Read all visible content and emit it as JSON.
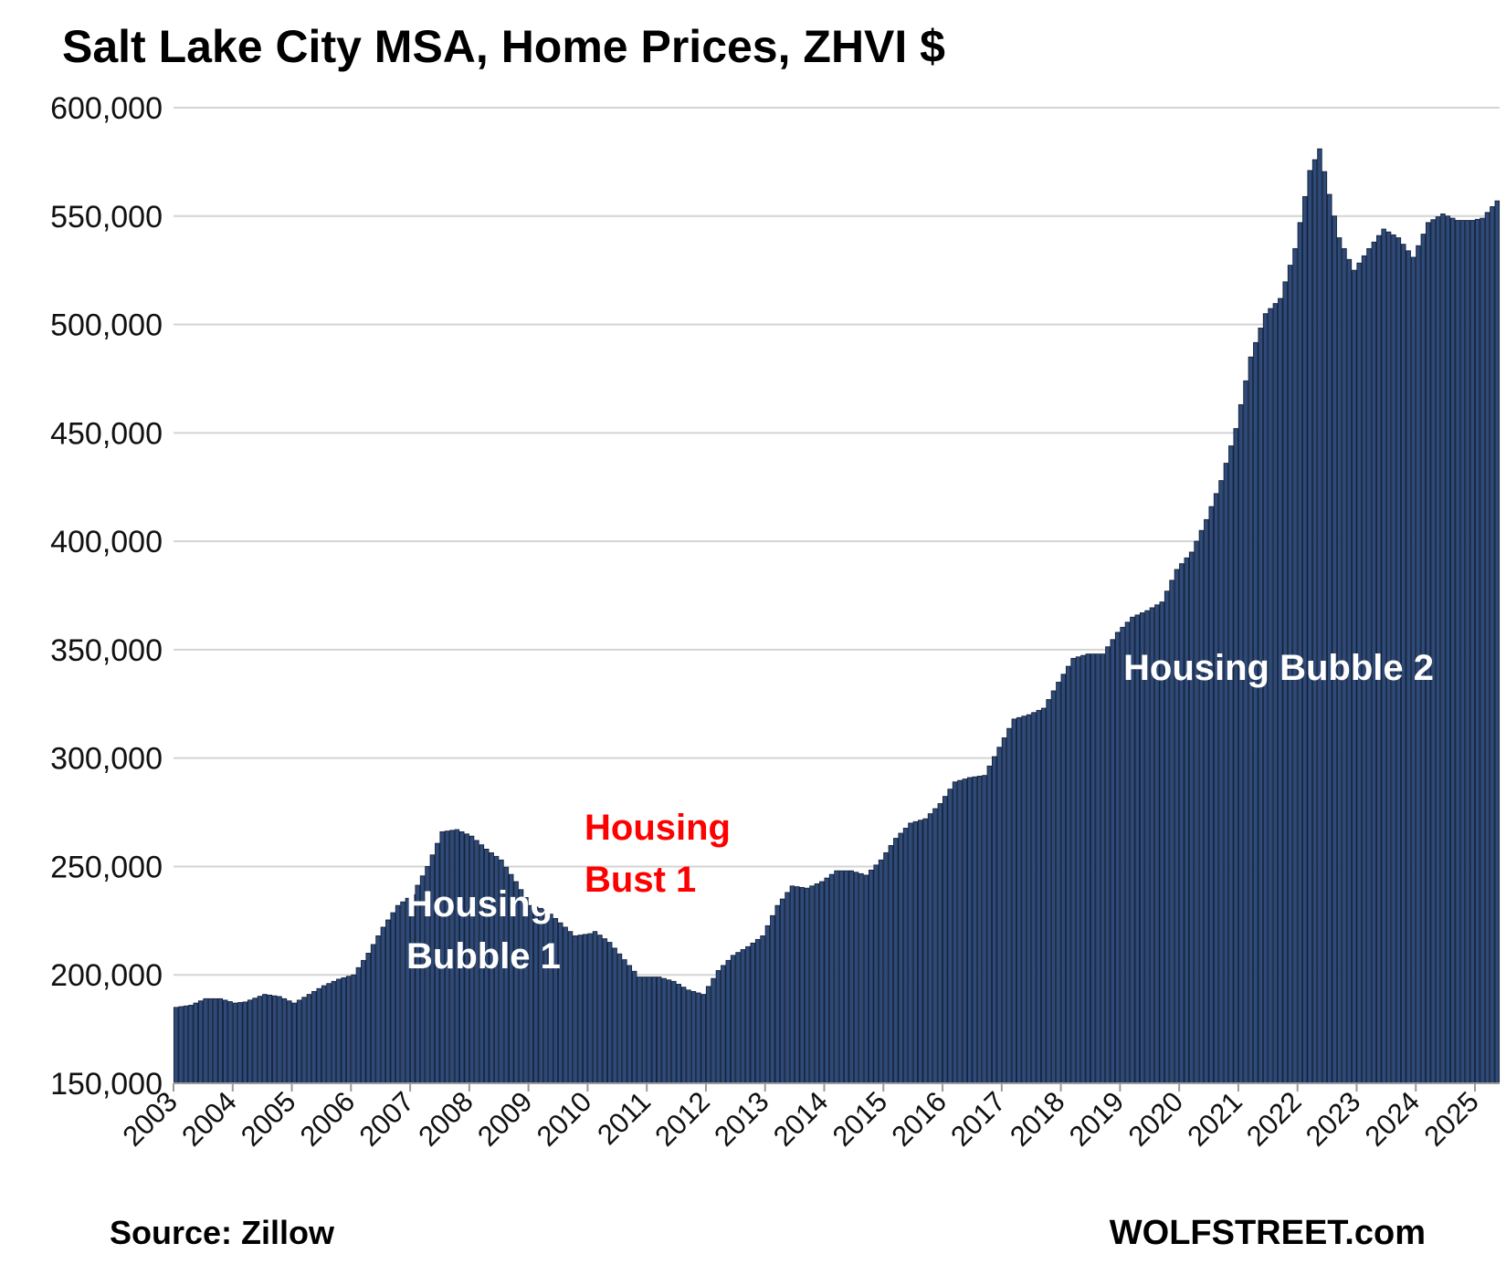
{
  "chart_data": {
    "type": "bar",
    "title": "Salt Lake City MSA, Home Prices, ZHVI $",
    "source": "Source: Zillow",
    "brand": "WOLFSTREET.com",
    "xlabel": "",
    "ylabel": "",
    "ylim": [
      150000,
      600000
    ],
    "yticks": [
      "150,000",
      "200,000",
      "250,000",
      "300,000",
      "350,000",
      "400,000",
      "450,000",
      "500,000",
      "550,000",
      "600,000"
    ],
    "xticks": [
      "2003",
      "2004",
      "2005",
      "2006",
      "2007",
      "2008",
      "2009",
      "2010",
      "2011",
      "2012",
      "2013",
      "2014",
      "2015",
      "2016",
      "2017",
      "2018",
      "2019",
      "2020",
      "2021",
      "2022",
      "2023",
      "2024",
      "2025"
    ],
    "grid": true,
    "bar_color": "#2e4a78",
    "annotations": [
      {
        "lines": [
          "Housing",
          "Bubble 1"
        ],
        "color": "#ffffff"
      },
      {
        "lines": [
          "Housing",
          "Bust 1"
        ],
        "color": "#ff0000"
      },
      {
        "lines": [
          "Housing Bubble 2"
        ],
        "color": "#ffffff"
      }
    ],
    "anchors": [
      [
        "2003-01",
        185000
      ],
      [
        "2003-04",
        186000
      ],
      [
        "2003-07",
        189000
      ],
      [
        "2003-10",
        189000
      ],
      [
        "2004-01",
        187000
      ],
      [
        "2004-03",
        187500
      ],
      [
        "2004-07",
        191000
      ],
      [
        "2004-10",
        190000
      ],
      [
        "2005-01",
        187000
      ],
      [
        "2005-04",
        191000
      ],
      [
        "2005-07",
        195000
      ],
      [
        "2005-10",
        198000
      ],
      [
        "2006-01",
        200000
      ],
      [
        "2006-04",
        210000
      ],
      [
        "2006-07",
        222000
      ],
      [
        "2006-10",
        232000
      ],
      [
        "2007-01",
        237000
      ],
      [
        "2007-04",
        250000
      ],
      [
        "2007-07",
        266000
      ],
      [
        "2007-10",
        267000
      ],
      [
        "2008-01",
        264000
      ],
      [
        "2008-04",
        258000
      ],
      [
        "2008-07",
        253000
      ],
      [
        "2008-10",
        243000
      ],
      [
        "2009-01",
        232000
      ],
      [
        "2009-04",
        230000
      ],
      [
        "2009-07",
        224000
      ],
      [
        "2009-10",
        218000
      ],
      [
        "2010-01",
        219000
      ],
      [
        "2010-02",
        220000
      ],
      [
        "2010-05",
        215000
      ],
      [
        "2010-08",
        207000
      ],
      [
        "2010-11",
        199000
      ],
      [
        "2011-03",
        199000
      ],
      [
        "2011-06",
        197000
      ],
      [
        "2011-09",
        193000
      ],
      [
        "2011-12",
        191000
      ],
      [
        "2012-03",
        202000
      ],
      [
        "2012-06",
        209000
      ],
      [
        "2012-09",
        213000
      ],
      [
        "2012-12",
        218000
      ],
      [
        "2013-03",
        232000
      ],
      [
        "2013-06",
        241000
      ],
      [
        "2013-09",
        240000
      ],
      [
        "2013-12",
        243000
      ],
      [
        "2014-03",
        248000
      ],
      [
        "2014-06",
        248000
      ],
      [
        "2014-09",
        246000
      ],
      [
        "2014-12",
        253000
      ],
      [
        "2015-03",
        263000
      ],
      [
        "2015-06",
        270000
      ],
      [
        "2015-09",
        272000
      ],
      [
        "2015-12",
        279000
      ],
      [
        "2016-03",
        289000
      ],
      [
        "2016-06",
        291000
      ],
      [
        "2016-09",
        292000
      ],
      [
        "2016-12",
        305000
      ],
      [
        "2017-03",
        318000
      ],
      [
        "2017-06",
        320000
      ],
      [
        "2017-09",
        323000
      ],
      [
        "2017-12",
        335000
      ],
      [
        "2018-03",
        346000
      ],
      [
        "2018-06",
        348000
      ],
      [
        "2018-09",
        348000
      ],
      [
        "2018-12",
        358000
      ],
      [
        "2019-03",
        365000
      ],
      [
        "2019-06",
        368000
      ],
      [
        "2019-09",
        372000
      ],
      [
        "2019-12",
        387000
      ],
      [
        "2020-03",
        395000
      ],
      [
        "2020-06",
        410000
      ],
      [
        "2020-09",
        428000
      ],
      [
        "2020-12",
        452000
      ],
      [
        "2021-03",
        485000
      ],
      [
        "2021-06",
        505000
      ],
      [
        "2021-09",
        512000
      ],
      [
        "2021-12",
        535000
      ],
      [
        "2022-03",
        571000
      ],
      [
        "2022-05",
        581000
      ],
      [
        "2022-07",
        560000
      ],
      [
        "2022-09",
        540000
      ],
      [
        "2022-12",
        525000
      ],
      [
        "2023-03",
        535000
      ],
      [
        "2023-06",
        544000
      ],
      [
        "2023-09",
        540000
      ],
      [
        "2023-12",
        531000
      ],
      [
        "2024-03",
        547000
      ],
      [
        "2024-06",
        551000
      ],
      [
        "2024-09",
        548000
      ],
      [
        "2024-12",
        548000
      ],
      [
        "2025-02",
        549000
      ],
      [
        "2025-05",
        557000
      ]
    ]
  }
}
